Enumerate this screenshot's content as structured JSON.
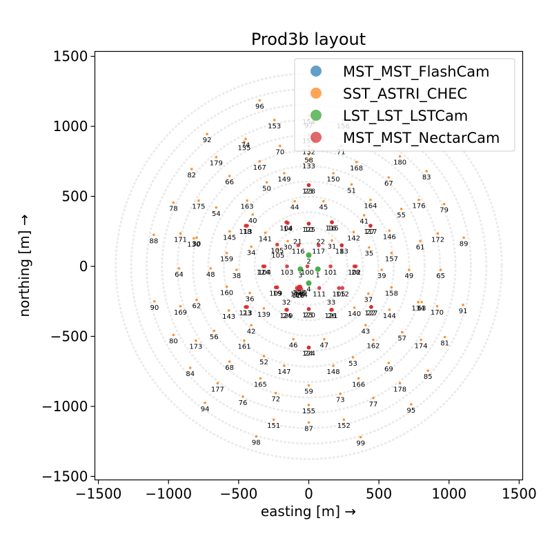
{
  "chart_data": {
    "type": "scatter",
    "title": "Prod3b layout",
    "xlabel": "easting [m] →",
    "ylabel": "northing [m] →",
    "xlim": [
      -1525,
      1525
    ],
    "ylim": [
      -1525,
      1535
    ],
    "xticks": [
      -1500,
      -1000,
      -500,
      0,
      500,
      1000,
      1500
    ],
    "yticks": [
      -1500,
      -1000,
      -500,
      0,
      500,
      1000,
      1500
    ],
    "xtick_labels": [
      "−1500",
      "−1000",
      "−500",
      "0",
      "500",
      "1000",
      "1500"
    ],
    "ytick_labels": [
      "−1500",
      "−1000",
      "−500",
      "0",
      "500",
      "1000",
      "1500"
    ],
    "legend_position": "top-right",
    "guide_rings": {
      "color": "#ebebeb",
      "radii": [
        166,
        276,
        386,
        496,
        606,
        716,
        826,
        936,
        1046,
        1156,
        1266,
        1376
      ]
    },
    "series": [
      {
        "name": "MST_MST_FlashCam",
        "color": "#1f77b4",
        "points": []
      },
      {
        "name": "SST_ASTRI_CHEC",
        "color": "#ff7f0e",
        "points": [
          {
            "x": -350,
            "y": 1185,
            "label": "96"
          },
          {
            "x": 0,
            "y": 1050,
            "label": "97"
          },
          {
            "x": -245,
            "y": 1045,
            "label": "153"
          },
          {
            "x": 0,
            "y": 1075,
            "label": "154"
          },
          {
            "x": 245,
            "y": 1045,
            "label": "156"
          },
          {
            "x": -725,
            "y": 945,
            "label": "92"
          },
          {
            "x": -450,
            "y": 910,
            "label": "74"
          },
          {
            "x": -460,
            "y": 890,
            "label": "135"
          },
          {
            "x": -205,
            "y": 860,
            "label": "70"
          },
          {
            "x": 0,
            "y": 940,
            "label": "155"
          },
          {
            "x": 0,
            "y": 860,
            "label": "132"
          },
          {
            "x": 230,
            "y": 860,
            "label": "71"
          },
          {
            "x": 0,
            "y": 800,
            "label": "58"
          },
          {
            "x": 0,
            "y": 760,
            "label": "133"
          },
          {
            "x": -660,
            "y": 780,
            "label": "179"
          },
          {
            "x": -350,
            "y": 750,
            "label": "167"
          },
          {
            "x": 340,
            "y": 745,
            "label": "168"
          },
          {
            "x": 650,
            "y": 785,
            "label": "180"
          },
          {
            "x": -835,
            "y": 695,
            "label": "82"
          },
          {
            "x": 840,
            "y": 680,
            "label": "83"
          },
          {
            "x": -565,
            "y": 645,
            "label": "66"
          },
          {
            "x": -175,
            "y": 665,
            "label": "149"
          },
          {
            "x": 175,
            "y": 665,
            "label": "150"
          },
          {
            "x": 570,
            "y": 635,
            "label": "67"
          },
          {
            "x": -300,
            "y": 600,
            "label": "50"
          },
          {
            "x": 305,
            "y": 585,
            "label": "51"
          },
          {
            "x": -965,
            "y": 455,
            "label": "78"
          },
          {
            "x": -785,
            "y": 470,
            "label": "175"
          },
          {
            "x": -440,
            "y": 470,
            "label": "163"
          },
          {
            "x": -100,
            "y": 465,
            "label": "44"
          },
          {
            "x": 105,
            "y": 465,
            "label": "45"
          },
          {
            "x": 440,
            "y": 475,
            "label": "164"
          },
          {
            "x": 785,
            "y": 475,
            "label": "176"
          },
          {
            "x": 965,
            "y": 445,
            "label": "79"
          },
          {
            "x": -660,
            "y": 420,
            "label": "54"
          },
          {
            "x": 660,
            "y": 410,
            "label": "55"
          },
          {
            "x": -400,
            "y": 370,
            "label": "40"
          },
          {
            "x": 395,
            "y": 365,
            "label": "41"
          },
          {
            "x": -1105,
            "y": 225,
            "label": "88"
          },
          {
            "x": -915,
            "y": 235,
            "label": "171"
          },
          {
            "x": -800,
            "y": 205,
            "label": "30"
          },
          {
            "x": -820,
            "y": 200,
            "label": "130"
          },
          {
            "x": -565,
            "y": 250,
            "label": "145"
          },
          {
            "x": -310,
            "y": 240,
            "label": "141"
          },
          {
            "x": 320,
            "y": 245,
            "label": "142"
          },
          {
            "x": 575,
            "y": 255,
            "label": "146"
          },
          {
            "x": 920,
            "y": 235,
            "label": "172"
          },
          {
            "x": 1105,
            "y": 205,
            "label": "89"
          },
          {
            "x": 795,
            "y": 180,
            "label": "61"
          },
          {
            "x": -410,
            "y": 140,
            "label": "34"
          },
          {
            "x": -585,
            "y": 95,
            "label": "159"
          },
          {
            "x": 430,
            "y": 135,
            "label": "35"
          },
          {
            "x": 590,
            "y": 95,
            "label": "157"
          },
          {
            "x": -220,
            "y": 120,
            "label": "105"
          },
          {
            "x": -150,
            "y": 180,
            "label": "30"
          },
          {
            "x": 165,
            "y": 185,
            "label": "31"
          },
          {
            "x": -925,
            "y": -15,
            "label": "64"
          },
          {
            "x": -700,
            "y": -15,
            "label": "48"
          },
          {
            "x": -515,
            "y": -25,
            "label": "38"
          },
          {
            "x": 520,
            "y": -25,
            "label": "39"
          },
          {
            "x": 715,
            "y": -25,
            "label": "49"
          },
          {
            "x": 940,
            "y": -25,
            "label": "65"
          },
          {
            "x": -585,
            "y": -145,
            "label": "160"
          },
          {
            "x": -420,
            "y": -190,
            "label": "36"
          },
          {
            "x": 425,
            "y": -195,
            "label": "37"
          },
          {
            "x": 590,
            "y": -150,
            "label": "158"
          },
          {
            "x": -800,
            "y": -240,
            "label": "62"
          },
          {
            "x": 780,
            "y": -255,
            "label": "134"
          },
          {
            "x": 805,
            "y": -255,
            "label": "63"
          },
          {
            "x": -1100,
            "y": -250,
            "label": "90"
          },
          {
            "x": -915,
            "y": -285,
            "label": "169"
          },
          {
            "x": 915,
            "y": -285,
            "label": "170"
          },
          {
            "x": 1100,
            "y": -275,
            "label": "91"
          },
          {
            "x": -570,
            "y": -315,
            "label": "143"
          },
          {
            "x": -320,
            "y": -300,
            "label": "139"
          },
          {
            "x": 325,
            "y": -295,
            "label": "140"
          },
          {
            "x": 575,
            "y": -310,
            "label": "144"
          },
          {
            "x": -410,
            "y": -420,
            "label": "42"
          },
          {
            "x": 405,
            "y": -420,
            "label": "43"
          },
          {
            "x": -675,
            "y": -460,
            "label": "56"
          },
          {
            "x": 665,
            "y": -470,
            "label": "57"
          },
          {
            "x": -965,
            "y": -490,
            "label": "80"
          },
          {
            "x": -805,
            "y": -530,
            "label": "173"
          },
          {
            "x": -460,
            "y": -530,
            "label": "161"
          },
          {
            "x": -110,
            "y": -520,
            "label": "46"
          },
          {
            "x": 110,
            "y": -520,
            "label": "47"
          },
          {
            "x": 460,
            "y": -525,
            "label": "162"
          },
          {
            "x": 800,
            "y": -525,
            "label": "174"
          },
          {
            "x": 970,
            "y": -505,
            "label": "81"
          },
          {
            "x": -320,
            "y": -640,
            "label": "52"
          },
          {
            "x": 315,
            "y": -650,
            "label": "53"
          },
          {
            "x": -565,
            "y": -680,
            "label": "68"
          },
          {
            "x": 570,
            "y": -690,
            "label": "69"
          },
          {
            "x": -845,
            "y": -725,
            "label": "84"
          },
          {
            "x": -175,
            "y": -710,
            "label": "147"
          },
          {
            "x": 175,
            "y": -710,
            "label": "148"
          },
          {
            "x": 850,
            "y": -745,
            "label": "85"
          },
          {
            "x": -345,
            "y": -800,
            "label": "165"
          },
          {
            "x": 355,
            "y": -800,
            "label": "166"
          },
          {
            "x": -650,
            "y": -835,
            "label": "177"
          },
          {
            "x": 650,
            "y": -835,
            "label": "178"
          },
          {
            "x": 0,
            "y": -850,
            "label": "59"
          },
          {
            "x": -235,
            "y": -905,
            "label": "72"
          },
          {
            "x": 225,
            "y": -910,
            "label": "73"
          },
          {
            "x": -470,
            "y": -930,
            "label": "76"
          },
          {
            "x": 460,
            "y": -940,
            "label": "77"
          },
          {
            "x": -740,
            "y": -975,
            "label": "94"
          },
          {
            "x": 730,
            "y": -985,
            "label": "95"
          },
          {
            "x": 0,
            "y": -990,
            "label": "155"
          },
          {
            "x": -250,
            "y": -1095,
            "label": "151"
          },
          {
            "x": 250,
            "y": -1095,
            "label": "152"
          },
          {
            "x": 0,
            "y": -1115,
            "label": "87"
          },
          {
            "x": -375,
            "y": -1215,
            "label": "98"
          },
          {
            "x": 370,
            "y": -1220,
            "label": "99"
          }
        ]
      },
      {
        "name": "LST_LST_LSTCam",
        "color": "#2ca02c",
        "points": [
          {
            "x": 0,
            "y": 80,
            "label": "2"
          },
          {
            "x": -60,
            "y": -20,
            "label": "3"
          },
          {
            "x": 65,
            "y": -20,
            "label": "1"
          },
          {
            "x": 0,
            "y": -120,
            "label": "4"
          }
        ]
      },
      {
        "name": "MST_MST_NectarCam",
        "color": "#d62728",
        "points": [
          {
            "x": 0,
            "y": 580,
            "label": "128"
          },
          {
            "x": 0,
            "y": 580,
            "label": "23"
          },
          {
            "x": -160,
            "y": 315,
            "label": "104"
          },
          {
            "x": -150,
            "y": 310,
            "label": "14"
          },
          {
            "x": 0,
            "y": 305,
            "label": "125"
          },
          {
            "x": 0,
            "y": 305,
            "label": "10"
          },
          {
            "x": 165,
            "y": 315,
            "label": "116"
          },
          {
            "x": 165,
            "y": 315,
            "label": "16"
          },
          {
            "x": -450,
            "y": 290,
            "label": "113"
          },
          {
            "x": -440,
            "y": 290,
            "label": "18"
          },
          {
            "x": 440,
            "y": 290,
            "label": "117"
          },
          {
            "x": 440,
            "y": 290,
            "label": "27"
          },
          {
            "x": -225,
            "y": 155,
            "label": "105"
          },
          {
            "x": -75,
            "y": 150,
            "label": "116"
          },
          {
            "x": 70,
            "y": 150,
            "label": "117"
          },
          {
            "x": 235,
            "y": 150,
            "label": "113"
          },
          {
            "x": 235,
            "y": 150,
            "label": "8"
          },
          {
            "x": -325,
            "y": 0,
            "label": "124"
          },
          {
            "x": -315,
            "y": 0,
            "label": "104"
          },
          {
            "x": -155,
            "y": 0,
            "label": "103"
          },
          {
            "x": -10,
            "y": 0,
            "label": "100"
          },
          {
            "x": 155,
            "y": 0,
            "label": "101"
          },
          {
            "x": 325,
            "y": 0,
            "label": "102"
          },
          {
            "x": 335,
            "y": 0,
            "label": "28"
          },
          {
            "x": -235,
            "y": -150,
            "label": "109"
          },
          {
            "x": -225,
            "y": -150,
            "label": "19"
          },
          {
            "x": -70,
            "y": -145,
            "label": "118"
          },
          {
            "x": -60,
            "y": -145,
            "label": "110"
          },
          {
            "x": -75,
            "y": -165,
            "label": "119"
          },
          {
            "x": -55,
            "y": -160,
            "label": "114"
          },
          {
            "x": -85,
            "y": -155,
            "label": "120"
          },
          {
            "x": 75,
            "y": -155,
            "label": "111"
          },
          {
            "x": 215,
            "y": -155,
            "label": "105"
          },
          {
            "x": 240,
            "y": -155,
            "label": "112"
          },
          {
            "x": -450,
            "y": -290,
            "label": "113"
          },
          {
            "x": -440,
            "y": -290,
            "label": "23"
          },
          {
            "x": 445,
            "y": -290,
            "label": "127"
          },
          {
            "x": 445,
            "y": -290,
            "label": "22"
          },
          {
            "x": -160,
            "y": -310,
            "label": "129"
          },
          {
            "x": -155,
            "y": -310,
            "label": "24"
          },
          {
            "x": 0,
            "y": -305,
            "label": "120"
          },
          {
            "x": 0,
            "y": -305,
            "label": "25"
          },
          {
            "x": 160,
            "y": -310,
            "label": "121"
          },
          {
            "x": 165,
            "y": -310,
            "label": "26"
          },
          {
            "x": 0,
            "y": -580,
            "label": "124"
          },
          {
            "x": 0,
            "y": -580,
            "label": "24"
          }
        ]
      }
    ],
    "extra_labels": [
      {
        "x": -80,
        "y": 220,
        "label": "21"
      },
      {
        "x": 85,
        "y": 220,
        "label": "22"
      },
      {
        "x": -160,
        "y": -215,
        "label": "32"
      },
      {
        "x": 160,
        "y": -215,
        "label": "33"
      }
    ]
  }
}
